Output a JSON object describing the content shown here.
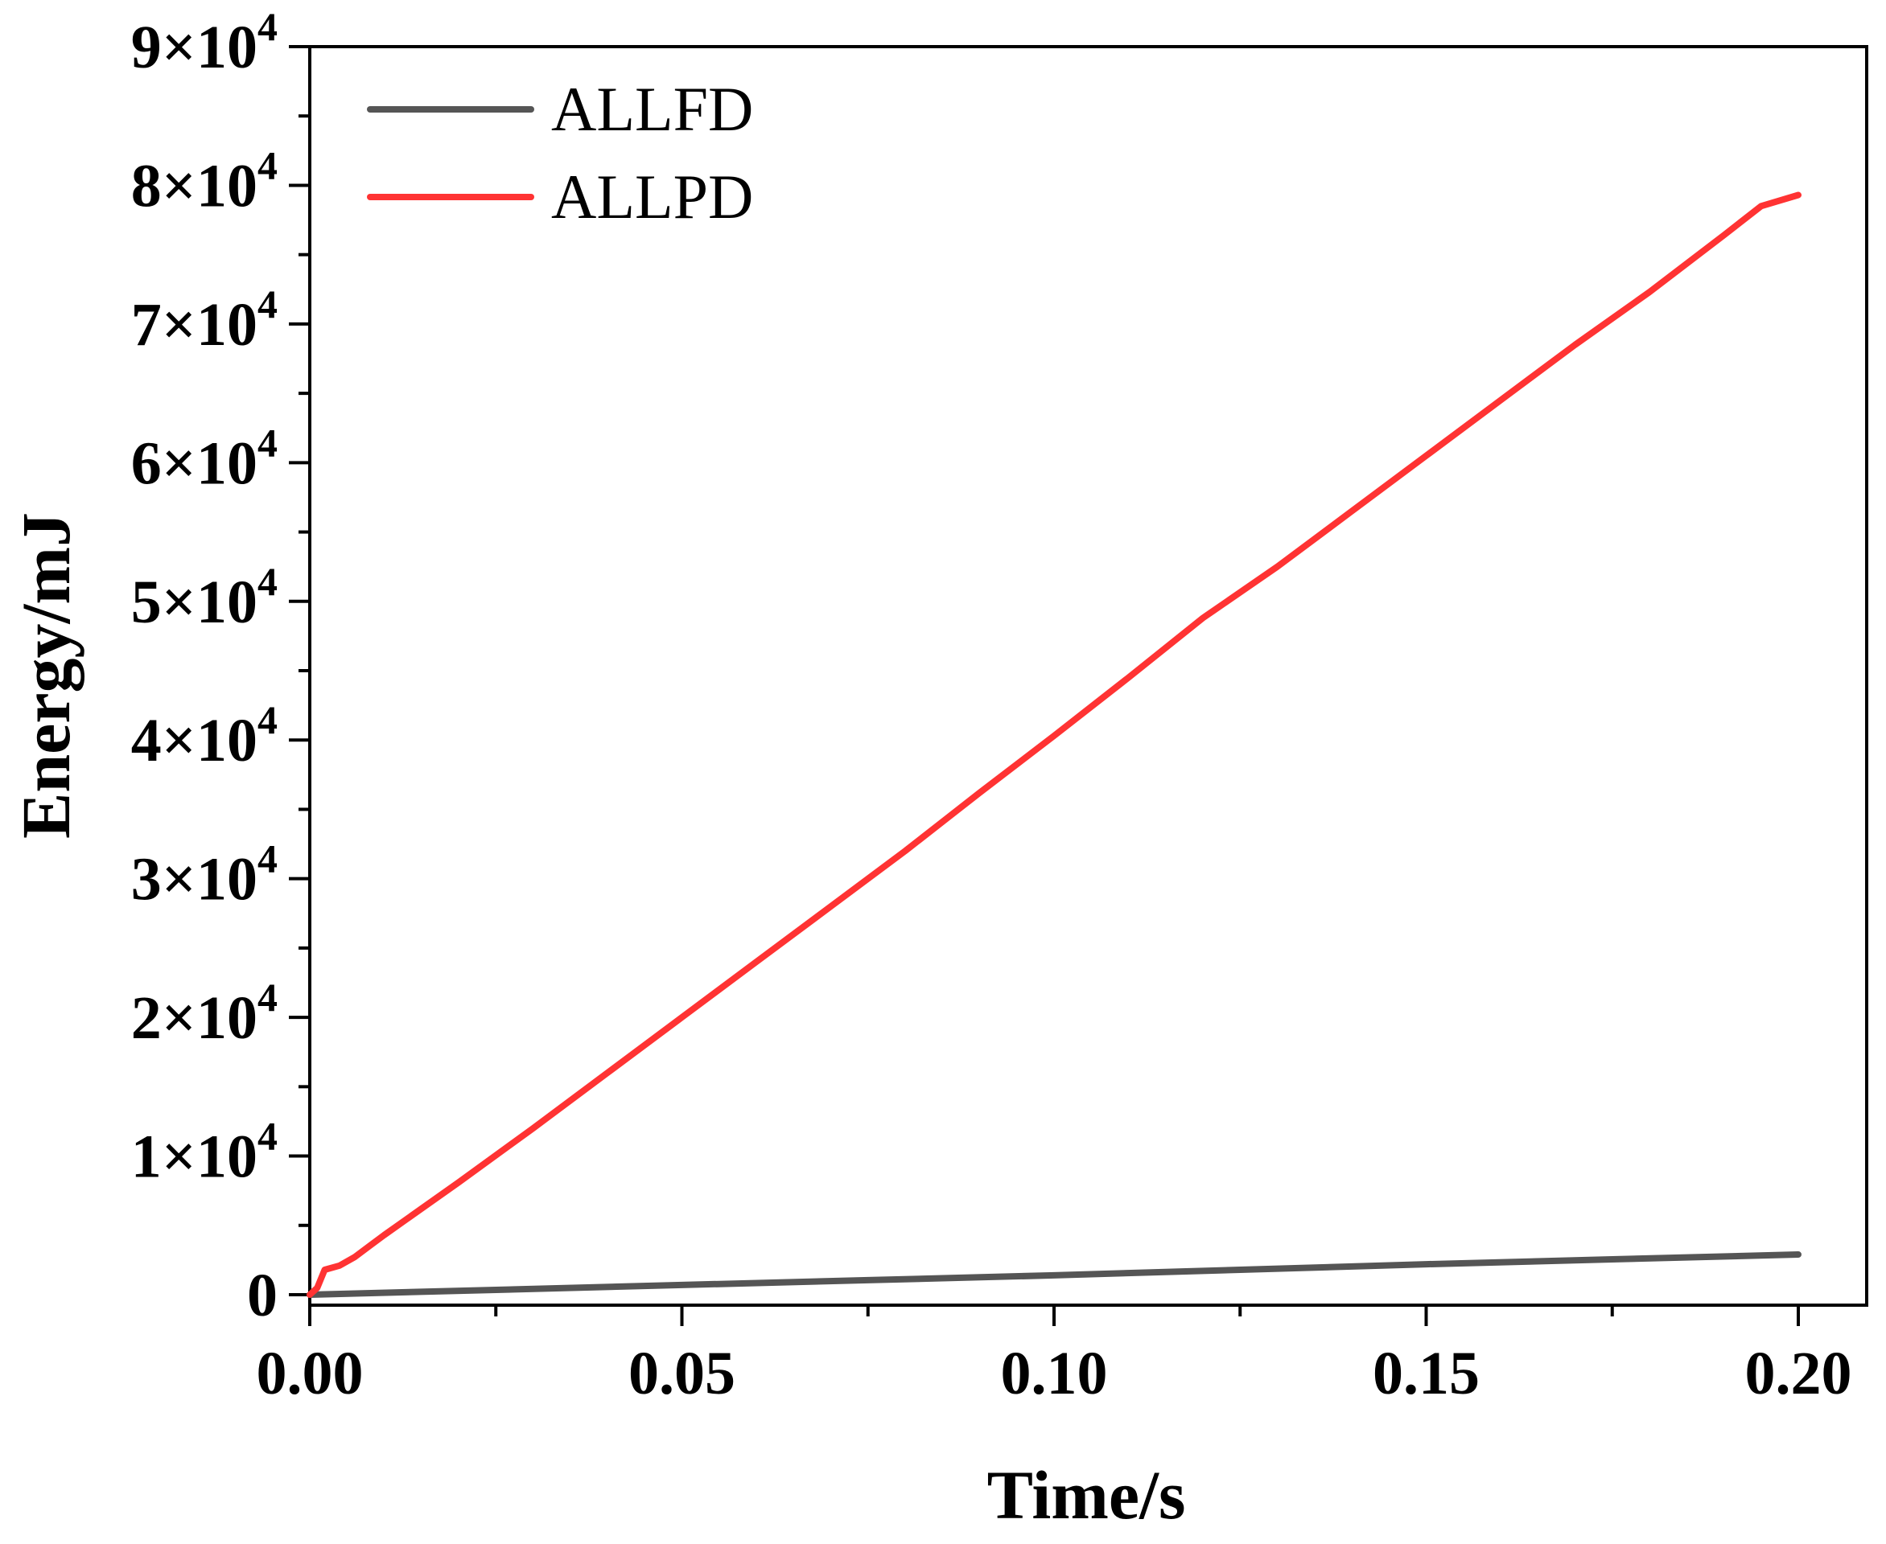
{
  "chart_data": {
    "type": "line",
    "title": "",
    "xlabel": "Time/s",
    "ylabel": "Energy/mJ",
    "xlim": [
      0,
      0.21
    ],
    "ylim": [
      -1000,
      90000
    ],
    "x_ticks": [
      0,
      0.05,
      0.1,
      0.15,
      0.2
    ],
    "x_tick_labels": [
      "0.00",
      "0.05",
      "0.10",
      "0.15",
      "0.20"
    ],
    "y_ticks": [
      0,
      10000,
      20000,
      30000,
      40000,
      50000,
      60000,
      70000,
      80000,
      90000
    ],
    "y_tick_labels": [
      {
        "mantissa": "0",
        "exponent": ""
      },
      {
        "mantissa": "1×10",
        "exponent": "4"
      },
      {
        "mantissa": "2×10",
        "exponent": "4"
      },
      {
        "mantissa": "3×10",
        "exponent": "4"
      },
      {
        "mantissa": "4×10",
        "exponent": "4"
      },
      {
        "mantissa": "5×10",
        "exponent": "4"
      },
      {
        "mantissa": "6×10",
        "exponent": "4"
      },
      {
        "mantissa": "7×10",
        "exponent": "4"
      },
      {
        "mantissa": "8×10",
        "exponent": "4"
      },
      {
        "mantissa": "9×10",
        "exponent": "4"
      }
    ],
    "grid": false,
    "legend_position": "top-left",
    "series": [
      {
        "name": "ALLFD",
        "color": "#555555",
        "x": [
          0,
          0.025,
          0.05,
          0.075,
          0.1,
          0.125,
          0.15,
          0.175,
          0.2
        ],
        "y": [
          0,
          350,
          700,
          1050,
          1400,
          1800,
          2200,
          2550,
          2900
        ]
      },
      {
        "name": "ALLPD",
        "color": "#ff3333",
        "x": [
          0,
          0.001,
          0.002,
          0.004,
          0.006,
          0.008,
          0.01,
          0.02,
          0.03,
          0.04,
          0.05,
          0.06,
          0.07,
          0.08,
          0.09,
          0.1,
          0.11,
          0.12,
          0.13,
          0.14,
          0.15,
          0.16,
          0.17,
          0.18,
          0.19,
          0.195,
          0.2
        ],
        "y": [
          0,
          500,
          1800,
          2100,
          2700,
          3500,
          4300,
          8100,
          12000,
          16000,
          20000,
          24000,
          28000,
          32000,
          36200,
          40300,
          44500,
          48800,
          52500,
          56500,
          60500,
          64500,
          68500,
          72300,
          76400,
          78500,
          79300
        ]
      }
    ]
  }
}
